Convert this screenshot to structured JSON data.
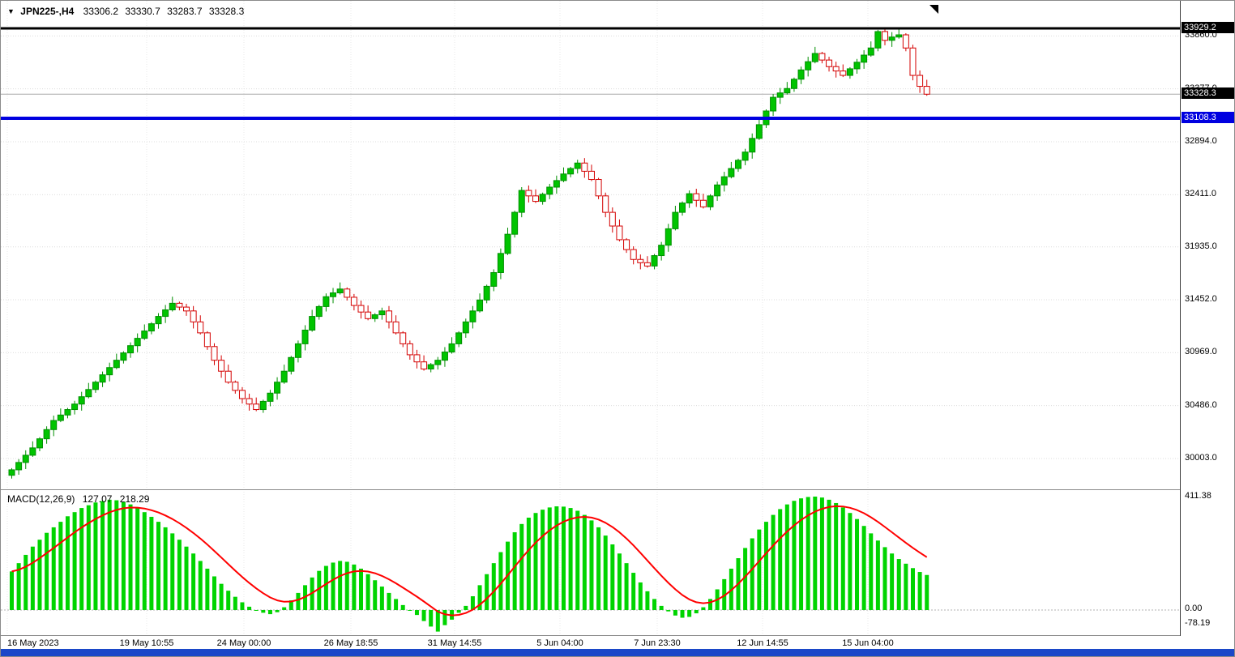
{
  "header": {
    "symbol_period": "JPN225-,H4",
    "open": "33306.2",
    "high": "33330.7",
    "low": "33283.7",
    "close": "33328.3"
  },
  "colors": {
    "bull": "#008f00",
    "bull_fill": "#00c400",
    "bear": "#d40000",
    "bear_fill": "#ffffff",
    "macd_bar": "#00d400",
    "signal": "#ff0000",
    "level_black": "#000000",
    "level_blue": "#0000e0",
    "bid_line": "#a8a8a8",
    "grid": "#dcdcdc",
    "taskbar": "#1a47c8"
  },
  "price_axis": {
    "ticks": [
      33860.0,
      33377.0,
      32894.0,
      32411.0,
      31935.0,
      31452.0,
      30969.0,
      30486.0,
      30003.0
    ],
    "boxed": [
      {
        "label": "33929.2",
        "value": 33929.2,
        "bg": "#000000"
      },
      {
        "label": "33328.3",
        "value": 33328.3,
        "bg": "#000000"
      },
      {
        "label": "33108.3",
        "value": 33108.3,
        "bg": "#0000e0"
      }
    ]
  },
  "time_axis": {
    "labels": [
      "16 May 2023",
      "19 May 10:55",
      "24 May 00:00",
      "26 May 18:55",
      "31 May 14:55",
      "5 Jun 04:00",
      "7 Jun 23:30",
      "12 Jun 14:55",
      "15 Jun 04:00"
    ]
  },
  "macd_panel": {
    "label": "MACD(12,26,9)",
    "macd_value": "127.07",
    "signal_value": "218.29",
    "y_ticks": [
      "411.38",
      "0.00",
      "-78.19"
    ]
  },
  "chart_data": [
    {
      "type": "candlestick",
      "title": "JPN225-,H4",
      "x_tick_labels": [
        "16 May 2023",
        "19 May 10:55",
        "24 May 00:00",
        "26 May 18:55",
        "31 May 14:55",
        "5 Jun 04:00",
        "7 Jun 23:30",
        "12 Jun 14:55",
        "15 Jun 04:00"
      ],
      "y_tick_labels": [
        33860.0,
        33377.0,
        32894.0,
        32411.0,
        31935.0,
        31452.0,
        30969.0,
        30486.0,
        30003.0
      ],
      "levels": [
        {
          "price": 33929.2,
          "style": "black-solid"
        },
        {
          "price": 33328.3,
          "style": "bid"
        },
        {
          "price": 33108.3,
          "style": "blue-solid"
        }
      ],
      "first_open": 29850,
      "closes": [
        29900,
        29967,
        30033,
        30100,
        30183,
        30267,
        30350,
        30400,
        30450,
        30500,
        30567,
        30633,
        30700,
        30767,
        30833,
        30900,
        30967,
        31033,
        31100,
        31167,
        31233,
        31300,
        31360,
        31420,
        31385,
        31350,
        31250,
        31150,
        31025,
        30900,
        30800,
        30700,
        30625,
        30550,
        30500,
        30450,
        30525,
        30600,
        30700,
        30800,
        30925,
        31050,
        31175,
        31300,
        31390,
        31480,
        31515,
        31550,
        31475,
        31400,
        31340,
        31280,
        31315,
        31350,
        31250,
        31150,
        31050,
        30950,
        30885,
        30820,
        30860,
        30900,
        30975,
        31050,
        31150,
        31250,
        31350,
        31450,
        31575,
        31700,
        31875,
        32050,
        32250,
        32450,
        32400,
        32350,
        32415,
        32480,
        32540,
        32600,
        32650,
        32700,
        32625,
        32550,
        32400,
        32250,
        32125,
        32000,
        31910,
        31820,
        31790,
        31760,
        31855,
        31950,
        32100,
        32250,
        32335,
        32420,
        32360,
        32300,
        32400,
        32500,
        32575,
        32650,
        32725,
        32800,
        32925,
        33050,
        33175,
        33300,
        33340,
        33380,
        33465,
        33550,
        33625,
        33700,
        33640,
        33580,
        33540,
        33500,
        33560,
        33620,
        33685,
        33750,
        33900,
        33820,
        33850,
        33870,
        33750,
        33500,
        33400,
        33328.3
      ]
    },
    {
      "type": "bar",
      "name": "MACD(12,26,9)",
      "current_macd": 127.07,
      "current_signal": 218.29,
      "ylim": [
        -78.19,
        411.38
      ],
      "y_ticks": [
        411.38,
        0.0,
        -78.19
      ],
      "signal_note": "red line = EMA(9) of histogram values",
      "values": [
        140,
        170,
        200,
        230,
        255,
        280,
        300,
        320,
        340,
        355,
        370,
        380,
        390,
        395,
        400,
        398,
        392,
        383,
        370,
        355,
        338,
        320,
        300,
        278,
        255,
        230,
        205,
        178,
        150,
        122,
        95,
        70,
        48,
        28,
        12,
        0,
        -10,
        -15,
        -8,
        10,
        35,
        62,
        90,
        118,
        142,
        160,
        172,
        178,
        175,
        165,
        150,
        130,
        108,
        85,
        62,
        40,
        18,
        0,
        -18,
        -40,
        -60,
        -78.19,
        -55,
        -35,
        -10,
        15,
        50,
        90,
        130,
        170,
        210,
        248,
        282,
        312,
        335,
        352,
        364,
        372,
        376,
        375,
        370,
        360,
        345,
        325,
        300,
        270,
        238,
        205,
        170,
        135,
        100,
        68,
        40,
        15,
        -5,
        -20,
        -28,
        -25,
        -12,
        10,
        40,
        75,
        112,
        150,
        188,
        225,
        260,
        292,
        320,
        345,
        366,
        383,
        396,
        405,
        410,
        411.38,
        408,
        400,
        388,
        372,
        352,
        330,
        305,
        278,
        252,
        228,
        205,
        185,
        168,
        152,
        138,
        127.07
      ]
    }
  ]
}
